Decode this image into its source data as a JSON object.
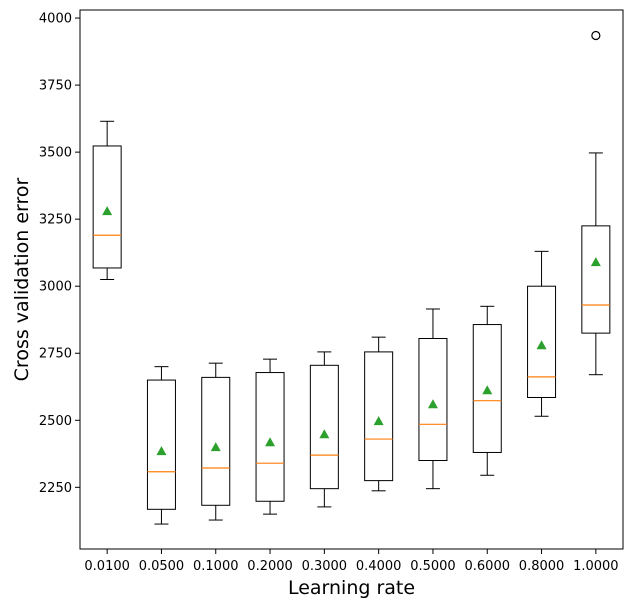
{
  "chart_data": {
    "type": "box",
    "xlabel": "Learning rate",
    "ylabel": "Cross validation error",
    "categories": [
      "0.0100",
      "0.0500",
      "0.1000",
      "0.2000",
      "0.3000",
      "0.4000",
      "0.5000",
      "0.6000",
      "0.8000",
      "1.0000"
    ],
    "ylim": [
      2020,
      4030
    ],
    "yticks": [
      2250,
      2500,
      2750,
      3000,
      3250,
      3500,
      3750,
      4000
    ],
    "grid": false,
    "boxes": [
      {
        "whisker_low": 3025,
        "q1": 3068,
        "median": 3190,
        "q3": 3523,
        "whisker_high": 3615,
        "mean": 3280,
        "outliers": []
      },
      {
        "whisker_low": 2113,
        "q1": 2168,
        "median": 2308,
        "q3": 2650,
        "whisker_high": 2700,
        "mean": 2385,
        "outliers": []
      },
      {
        "whisker_low": 2128,
        "q1": 2183,
        "median": 2322,
        "q3": 2660,
        "whisker_high": 2713,
        "mean": 2400,
        "outliers": []
      },
      {
        "whisker_low": 2150,
        "q1": 2198,
        "median": 2340,
        "q3": 2678,
        "whisker_high": 2728,
        "mean": 2418,
        "outliers": []
      },
      {
        "whisker_low": 2177,
        "q1": 2245,
        "median": 2370,
        "q3": 2705,
        "whisker_high": 2755,
        "mean": 2448,
        "outliers": []
      },
      {
        "whisker_low": 2237,
        "q1": 2275,
        "median": 2430,
        "q3": 2755,
        "whisker_high": 2810,
        "mean": 2497,
        "outliers": []
      },
      {
        "whisker_low": 2245,
        "q1": 2350,
        "median": 2485,
        "q3": 2805,
        "whisker_high": 2915,
        "mean": 2560,
        "outliers": []
      },
      {
        "whisker_low": 2295,
        "q1": 2380,
        "median": 2573,
        "q3": 2857,
        "whisker_high": 2925,
        "mean": 2612,
        "outliers": []
      },
      {
        "whisker_low": 2515,
        "q1": 2585,
        "median": 2662,
        "q3": 3000,
        "whisker_high": 3130,
        "mean": 2780,
        "outliers": []
      },
      {
        "whisker_low": 2670,
        "q1": 2825,
        "median": 2930,
        "q3": 3225,
        "whisker_high": 3497,
        "mean": 3090,
        "outliers": [
          3935
        ]
      }
    ],
    "colors": {
      "box": "#000000",
      "median": "#ff7f0e",
      "mean": "#2ca02c",
      "outlier": "#000000"
    }
  }
}
